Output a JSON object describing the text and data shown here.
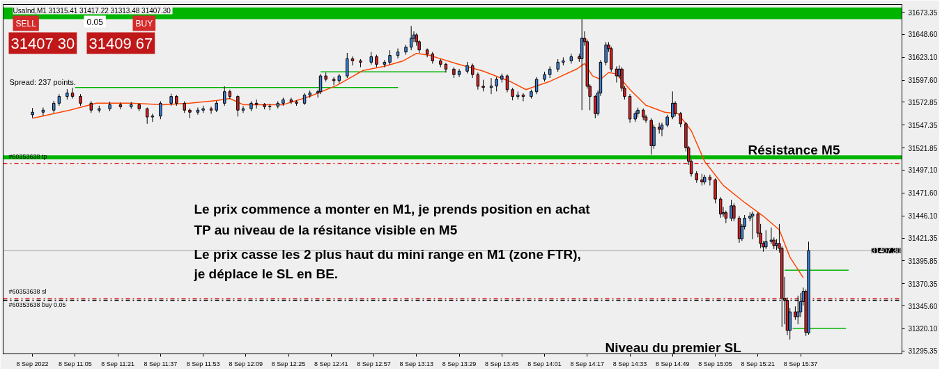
{
  "chart_data": {
    "type": "candlestick",
    "title": "UsaInd,M1  31315.41 31417.22 31313.48 31407.30",
    "xlim": [
      "2022-09-08T10:38",
      "2022-09-08T16:15"
    ],
    "ylim": [
      31292,
      31682
    ],
    "xticks": [
      {
        "value": "2022-09-08T10:49",
        "label": "8 Sep 2022"
      },
      {
        "value": "2022-09-08T11:05",
        "label": "8 Sep 11:05"
      },
      {
        "value": "2022-09-08T11:21",
        "label": "8 Sep 11:21"
      },
      {
        "value": "2022-09-08T11:37",
        "label": "8 Sep 11:37"
      },
      {
        "value": "2022-09-08T11:53",
        "label": "8 Sep 11:53"
      },
      {
        "value": "2022-09-08T12:09",
        "label": "8 Sep 12:09"
      },
      {
        "value": "2022-09-08T12:25",
        "label": "8 Sep 12:25"
      },
      {
        "value": "2022-09-08T12:41",
        "label": "8 Sep 12:41"
      },
      {
        "value": "2022-09-08T12:57",
        "label": "8 Sep 12:57"
      },
      {
        "value": "2022-09-08T13:13",
        "label": "8 Sep 13:13"
      },
      {
        "value": "2022-09-08T13:29",
        "label": "8 Sep 13:29"
      },
      {
        "value": "2022-09-08T13:45",
        "label": "8 Sep 13:45"
      },
      {
        "value": "2022-09-08T14:01",
        "label": "8 Sep 14:01"
      },
      {
        "value": "2022-09-08T14:17",
        "label": "8 Sep 14:17"
      },
      {
        "value": "2022-09-08T14:33",
        "label": "8 Sep 14:33"
      },
      {
        "value": "2022-09-08T14:49",
        "label": "8 Sep 14:49"
      },
      {
        "value": "2022-09-08T15:05",
        "label": "8 Sep 15:05"
      },
      {
        "value": "2022-09-08T15:21",
        "label": "8 Sep 15:21"
      },
      {
        "value": "2022-09-08T15:37",
        "label": "8 Sep 15:37"
      }
    ],
    "yticks": [
      {
        "value": 31673.35,
        "label": "31673.35"
      },
      {
        "value": 31648.6,
        "label": "31648.60"
      },
      {
        "value": 31623.1,
        "label": "31623.10"
      },
      {
        "value": 31597.6,
        "label": "31597.60"
      },
      {
        "value": 31572.85,
        "label": "31572.85"
      },
      {
        "value": 31547.35,
        "label": "31547.35"
      },
      {
        "value": 31521.85,
        "label": "31521.85"
      },
      {
        "value": 31497.1,
        "label": "31497.10"
      },
      {
        "value": 31471.6,
        "label": "31471.60"
      },
      {
        "value": 31446.1,
        "label": "31446.10"
      },
      {
        "value": 31421.35,
        "label": "31421.35"
      },
      {
        "value": 31395.85,
        "label": "31395.85"
      },
      {
        "value": 31370.35,
        "label": "31370.35"
      },
      {
        "value": 31345.6,
        "label": "31345.60"
      },
      {
        "value": 31320.1,
        "label": "31320.10"
      },
      {
        "value": 31295.35,
        "label": "31295.35"
      }
    ],
    "grid": false,
    "bands": [
      {
        "axis": "y",
        "from": 31665.7,
        "to": 31678.7,
        "color": "#00b400"
      },
      {
        "axis": "y",
        "from": 31509.1,
        "to": 31513.7,
        "color": "#00b400"
      }
    ],
    "ref_lines": [
      {
        "axis": "y",
        "value": 31504.6,
        "label": "#60353638 tp",
        "color": "#e01010",
        "line_style": "dashdot"
      },
      {
        "axis": "y",
        "value": 31353.6,
        "label": "#60353638 sl",
        "color": "#e01010",
        "line_style": "dashdot"
      },
      {
        "axis": "y",
        "value": 31351.8,
        "label": "#60353638 buy 0.05",
        "color": "#000000",
        "line_style": "dashdot"
      },
      {
        "axis": "y",
        "value": 31407.3,
        "label": "31407.30",
        "color": "#a0a0a0",
        "line_style": "solid"
      }
    ],
    "annotations": [
      "Le prix commence a monter en M1, je prends position en achat",
      "TP au niveau de la résitance visible en M5",
      "Le prix casse les 2 plus haut du mini range en M1 (zone FTR),",
      "je déplace le SL en BE.",
      "Spread: 237 points.",
      "SELL",
      "0.05",
      "BUY",
      "31407 30",
      "31409 67",
      "Résistance M5",
      "Niveau du premier SL"
    ],
    "series": [
      {
        "type": "line",
        "color": "#00b400",
        "x": [
          "2022-09-08T11:05",
          "2022-09-08T13:06"
        ],
        "values": [
          31589.3,
          31589.3
        ]
      },
      {
        "type": "line",
        "color": "#00b400",
        "x": [
          "2022-09-08T12:37",
          "2022-09-08T13:24"
        ],
        "values": [
          31606.9,
          31606.9
        ]
      },
      {
        "type": "line",
        "color": "#00b400",
        "x": [
          "2022-09-08T15:34",
          "2022-09-08T15:54"
        ],
        "values": [
          31320.5,
          31320.5
        ]
      },
      {
        "type": "line",
        "color": "#00b400",
        "x": [
          "2022-09-08T15:31",
          "2022-09-08T15:55"
        ],
        "values": [
          31385.5,
          31385.5
        ]
      },
      {
        "type": "line",
        "color": "#ff4500",
        "x": [
          "2022-09-08T10:49",
          "2022-09-08T11:03",
          "2022-09-08T11:13",
          "2022-09-08T11:26",
          "2022-09-08T11:38",
          "2022-09-08T11:48",
          "2022-09-08T11:58",
          "2022-09-08T12:03",
          "2022-09-08T12:08",
          "2022-09-08T12:23",
          "2022-09-08T12:33",
          "2022-09-08T12:43",
          "2022-09-08T12:53",
          "2022-09-08T13:01",
          "2022-09-08T13:08",
          "2022-09-08T13:13",
          "2022-09-08T13:18",
          "2022-09-08T13:28",
          "2022-09-08T13:38",
          "2022-09-08T13:48",
          "2022-09-08T13:54",
          "2022-09-08T14:03",
          "2022-09-08T14:13",
          "2022-09-08T14:16",
          "2022-09-08T14:19",
          "2022-09-08T14:22",
          "2022-09-08T14:25",
          "2022-09-08T14:28",
          "2022-09-08T14:33",
          "2022-09-08T14:39",
          "2022-09-08T14:46",
          "2022-09-08T14:51",
          "2022-09-08T14:56",
          "2022-09-08T15:01",
          "2022-09-08T15:08",
          "2022-09-08T15:16",
          "2022-09-08T15:23",
          "2022-09-08T15:29",
          "2022-09-08T15:33",
          "2022-09-08T15:38"
        ],
        "values": [
          31555.0,
          31564.1,
          31571.8,
          31571.8,
          31570.2,
          31571.8,
          31574.8,
          31577.1,
          31570.2,
          31570.2,
          31579.4,
          31591.6,
          31608.4,
          31613.0,
          31619.1,
          31627.5,
          31625.2,
          31616.0,
          31607.6,
          31596.2,
          31587.0,
          31596.2,
          31609.9,
          31616.0,
          31602.3,
          31598.5,
          31606.1,
          31604.6,
          31587.0,
          31569.5,
          31561.8,
          31560.3,
          31541.2,
          31506.9,
          31480.1,
          31461.0,
          31445.8,
          31430.5,
          31399.9,
          31377.0
        ]
      },
      {
        "x": [
          "2022-09-08T10:49",
          "2022-09-08T10:53",
          "2022-09-08T10:57",
          "2022-09-08T10:59",
          "2022-09-08T11:02",
          "2022-09-08T11:04",
          "2022-09-08T11:07",
          "2022-09-08T11:11",
          "2022-09-08T11:14",
          "2022-09-08T11:18",
          "2022-09-08T11:22",
          "2022-09-08T11:26",
          "2022-09-08T11:29",
          "2022-09-08T11:32",
          "2022-09-08T11:34",
          "2022-09-08T11:37",
          "2022-09-08T11:41",
          "2022-09-08T11:43",
          "2022-09-08T11:46",
          "2022-09-08T11:48",
          "2022-09-08T11:51",
          "2022-09-08T11:53",
          "2022-09-08T11:56",
          "2022-09-08T11:58",
          "2022-09-08T12:01",
          "2022-09-08T12:03",
          "2022-09-08T12:06",
          "2022-09-08T12:08",
          "2022-09-08T12:11",
          "2022-09-08T12:13",
          "2022-09-08T12:16",
          "2022-09-08T12:18",
          "2022-09-08T12:21",
          "2022-09-08T12:23",
          "2022-09-08T12:26",
          "2022-09-08T12:28",
          "2022-09-08T12:31",
          "2022-09-08T12:33",
          "2022-09-08T12:36",
          "2022-09-08T12:37",
          "2022-09-08T12:39",
          "2022-09-08T12:42",
          "2022-09-08T12:44",
          "2022-09-08T12:47",
          "2022-09-08T12:49",
          "2022-09-08T12:52",
          "2022-09-08T12:56",
          "2022-09-08T12:58",
          "2022-09-08T13:01",
          "2022-09-08T13:03",
          "2022-09-08T13:06",
          "2022-09-08T13:09",
          "2022-09-08T13:11",
          "2022-09-08T13:12",
          "2022-09-08T13:13",
          "2022-09-08T13:14",
          "2022-09-08T13:17",
          "2022-09-08T13:19",
          "2022-09-08T13:22",
          "2022-09-08T13:24",
          "2022-09-08T13:27",
          "2022-09-08T13:29",
          "2022-09-08T13:32",
          "2022-09-08T13:34",
          "2022-09-08T13:36",
          "2022-09-08T13:38",
          "2022-09-08T13:41",
          "2022-09-08T13:43",
          "2022-09-08T13:45",
          "2022-09-08T13:47",
          "2022-09-08T13:49",
          "2022-09-08T13:51",
          "2022-09-08T13:53",
          "2022-09-08T13:56",
          "2022-09-08T13:58",
          "2022-09-08T14:01",
          "2022-09-08T14:03",
          "2022-09-08T14:06",
          "2022-09-08T14:08",
          "2022-09-08T14:11",
          "2022-09-08T14:14",
          "2022-09-08T14:15",
          "2022-09-08T14:16",
          "2022-09-08T14:17",
          "2022-09-08T14:18",
          "2022-09-08T14:20",
          "2022-09-08T14:21",
          "2022-09-08T14:22",
          "2022-09-08T14:24",
          "2022-09-08T14:25",
          "2022-09-08T14:26",
          "2022-09-08T14:28",
          "2022-09-08T14:29",
          "2022-09-08T14:30",
          "2022-09-08T14:31",
          "2022-09-08T14:33",
          "2022-09-08T14:35",
          "2022-09-08T14:36",
          "2022-09-08T14:38",
          "2022-09-08T14:39",
          "2022-09-08T14:41",
          "2022-09-08T14:42",
          "2022-09-08T14:44",
          "2022-09-08T14:45",
          "2022-09-08T14:47",
          "2022-09-08T14:49",
          "2022-09-08T14:50",
          "2022-09-08T14:52",
          "2022-09-08T14:54",
          "2022-09-08T14:55",
          "2022-09-08T14:56",
          "2022-09-08T14:58",
          "2022-09-08T15:00",
          "2022-09-08T15:01",
          "2022-09-08T15:03",
          "2022-09-08T15:05",
          "2022-09-08T15:07",
          "2022-09-08T15:08",
          "2022-09-08T15:09",
          "2022-09-08T15:11",
          "2022-09-08T15:12",
          "2022-09-08T15:14",
          "2022-09-08T15:15",
          "2022-09-08T15:16",
          "2022-09-08T15:18",
          "2022-09-08T15:19",
          "2022-09-08T15:21",
          "2022-09-08T15:22",
          "2022-09-08T15:23",
          "2022-09-08T15:24",
          "2022-09-08T15:26",
          "2022-09-08T15:27",
          "2022-09-08T15:28",
          "2022-09-08T15:29",
          "2022-09-08T15:30",
          "2022-09-08T15:31",
          "2022-09-08T15:32",
          "2022-09-08T15:33",
          "2022-09-08T15:35",
          "2022-09-08T15:36",
          "2022-09-08T15:37",
          "2022-09-08T15:38",
          "2022-09-08T15:39",
          "2022-09-08T15:40"
        ],
        "ohlc": [
          [
            31559.0,
            31566.5,
            31555.5,
            31561.8
          ],
          [
            31561.8,
            31567.0,
            31558.0,
            31564.1
          ],
          [
            31564.1,
            31574.5,
            31561.0,
            31571.8
          ],
          [
            31571.8,
            31582.0,
            31569.0,
            31579.4
          ],
          [
            31579.4,
            31587.5,
            31576.0,
            31583.2
          ],
          [
            31583.2,
            31589.0,
            31577.0,
            31579.4
          ],
          [
            31579.4,
            31582.0,
            31569.0,
            31571.8
          ],
          [
            31571.8,
            31574.0,
            31561.0,
            31564.1
          ],
          [
            31564.1,
            31569.0,
            31561.5,
            31565.7
          ],
          [
            31565.7,
            31573.5,
            31563.0,
            31570.2
          ],
          [
            31570.2,
            31572.5,
            31565.0,
            31567.9
          ],
          [
            31567.9,
            31573.0,
            31565.5,
            31570.2
          ],
          [
            31570.2,
            31572.0,
            31563.0,
            31565.7
          ],
          [
            31565.7,
            31567.0,
            31548.9,
            31556.5
          ],
          [
            31556.5,
            31560.0,
            31551.0,
            31557.5
          ],
          [
            31557.5,
            31574.0,
            31554.0,
            31571.8
          ],
          [
            31571.8,
            31582.5,
            31569.0,
            31579.4
          ],
          [
            31579.4,
            31581.0,
            31569.0,
            31571.8
          ],
          [
            31571.8,
            31574.0,
            31561.0,
            31564.1
          ],
          [
            31564.1,
            31566.0,
            31555.0,
            31561.8
          ],
          [
            31561.8,
            31567.0,
            31559.0,
            31564.1
          ],
          [
            31564.1,
            31569.0,
            31561.0,
            31565.7
          ],
          [
            31565.7,
            31568.0,
            31560.0,
            31564.1
          ],
          [
            31564.1,
            31574.5,
            31562.0,
            31571.8
          ],
          [
            31571.8,
            31590.8,
            31569.0,
            31584.7
          ],
          [
            31584.7,
            31587.0,
            31576.5,
            31579.4
          ],
          [
            31579.4,
            31581.0,
            31557.0,
            31564.1
          ],
          [
            31564.1,
            31568.5,
            31561.0,
            31565.7
          ],
          [
            31565.7,
            31574.0,
            31563.0,
            31571.8
          ],
          [
            31571.8,
            31576.0,
            31566.0,
            31570.5
          ],
          [
            31570.5,
            31572.0,
            31565.0,
            31567.9
          ],
          [
            31567.9,
            31571.0,
            31564.0,
            31568.5
          ],
          [
            31568.5,
            31574.0,
            31566.0,
            31571.8
          ],
          [
            31571.8,
            31578.0,
            31569.0,
            31575.6
          ],
          [
            31575.6,
            31578.0,
            31571.0,
            31573.3
          ],
          [
            31573.3,
            31575.0,
            31569.0,
            31571.8
          ],
          [
            31571.8,
            31583.0,
            31570.0,
            31580.9
          ],
          [
            31580.9,
            31586.0,
            31578.0,
            31583.2
          ],
          [
            31583.2,
            31587.0,
            31578.0,
            31584.7
          ],
          [
            31584.7,
            31604.5,
            31582.0,
            31602.3
          ],
          [
            31602.3,
            31606.0,
            31596.0,
            31598.5
          ],
          [
            31598.5,
            31601.0,
            31592.0,
            31597.0
          ],
          [
            31597.0,
            31604.5,
            31594.0,
            31602.3
          ],
          [
            31602.3,
            31628.0,
            31600.0,
            31621.4
          ],
          [
            31621.4,
            31624.0,
            31614.0,
            31619.1
          ],
          [
            31619.1,
            31621.0,
            31612.0,
            31617.6
          ],
          [
            31617.6,
            31629.0,
            31615.0,
            31623.7
          ],
          [
            31623.7,
            31626.0,
            31612.0,
            31615.3
          ],
          [
            31615.3,
            31620.0,
            31612.0,
            31617.6
          ],
          [
            31617.6,
            31631.0,
            31615.0,
            31625.2
          ],
          [
            31625.2,
            31633.0,
            31622.0,
            31629.0
          ],
          [
            31629.0,
            31637.0,
            31626.0,
            31634.4
          ],
          [
            31634.4,
            31658.0,
            31631.0,
            31644.3
          ],
          [
            31644.3,
            31652.0,
            31640.0,
            31648.1
          ],
          [
            31648.1,
            31650.0,
            31636.0,
            31640.5
          ],
          [
            31640.5,
            31642.0,
            31628.0,
            31631.3
          ],
          [
            31631.3,
            31633.0,
            31623.0,
            31626.7
          ],
          [
            31626.7,
            31629.0,
            31616.0,
            31619.1
          ],
          [
            31619.1,
            31621.0,
            31612.0,
            31615.3
          ],
          [
            31615.3,
            31617.0,
            31606.0,
            31609.9
          ],
          [
            31609.9,
            31612.0,
            31600.0,
            31603.8
          ],
          [
            31603.8,
            31610.0,
            31601.0,
            31607.6
          ],
          [
            31607.6,
            31618.0,
            31605.0,
            31613.8
          ],
          [
            31613.8,
            31616.0,
            31600.0,
            31603.8
          ],
          [
            31603.8,
            31606.0,
            31587.0,
            31590.8
          ],
          [
            31590.8,
            31598.0,
            31585.0,
            31589.3
          ],
          [
            31589.3,
            31600.0,
            31582.0,
            31591.0
          ],
          [
            31591.0,
            31601.0,
            31585.0,
            31598.5
          ],
          [
            31598.5,
            31605.0,
            31595.0,
            31602.3
          ],
          [
            31602.3,
            31604.0,
            31584.0,
            31587.0
          ],
          [
            31587.0,
            31589.0,
            31575.0,
            31579.4
          ],
          [
            31579.4,
            31585.0,
            31576.0,
            31580.9
          ],
          [
            31580.9,
            31583.0,
            31574.0,
            31579.4
          ],
          [
            31579.4,
            31587.0,
            31577.0,
            31584.7
          ],
          [
            31584.7,
            31601.0,
            31582.0,
            31598.5
          ],
          [
            31598.5,
            31607.0,
            31596.0,
            31603.8
          ],
          [
            31603.8,
            31613.0,
            31600.0,
            31609.9
          ],
          [
            31609.9,
            31621.0,
            31607.0,
            31617.6
          ],
          [
            31617.6,
            31623.0,
            31614.0,
            31619.1
          ],
          [
            31619.1,
            31627.0,
            31616.0,
            31623.7
          ],
          [
            31623.7,
            31627.0,
            31618.0,
            31621.5
          ],
          [
            31621.5,
            31665.7,
            31564.1,
            31644.3
          ],
          [
            31644.3,
            31652.0,
            31636.0,
            31640.5
          ],
          [
            31640.5,
            31643.0,
            31588.0,
            31590.8
          ],
          [
            31590.8,
            31593.0,
            31564.0,
            31579.4
          ],
          [
            31579.4,
            31581.0,
            31555.0,
            31560.3
          ],
          [
            31560.3,
            31586.0,
            31558.0,
            31583.2
          ],
          [
            31583.2,
            31620.0,
            31580.0,
            31617.6
          ],
          [
            31617.6,
            31640.0,
            31614.0,
            31636.7
          ],
          [
            31636.7,
            31640.0,
            31629.0,
            31632.8
          ],
          [
            31632.8,
            31635.0,
            31607.0,
            31610.0
          ],
          [
            31610.0,
            31613.0,
            31595.0,
            31602.3
          ],
          [
            31602.3,
            31614.0,
            31600.0,
            31609.9
          ],
          [
            31609.9,
            31612.0,
            31585.0,
            31588.6
          ],
          [
            31588.6,
            31591.0,
            31576.0,
            31579.4
          ],
          [
            31579.4,
            31582.0,
            31550.0,
            31554.2
          ],
          [
            31554.2,
            31563.0,
            31551.0,
            31560.3
          ],
          [
            31560.3,
            31567.0,
            31556.0,
            31564.1
          ],
          [
            31564.1,
            31566.0,
            31553.0,
            31556.5
          ],
          [
            31556.5,
            31559.0,
            31550.0,
            31552.7
          ],
          [
            31552.7,
            31555.0,
            31514.5,
            31524.4
          ],
          [
            31524.4,
            31548.0,
            31521.0,
            31545.0
          ],
          [
            31545.0,
            31550.0,
            31538.0,
            31542.7
          ],
          [
            31542.7,
            31550.0,
            31535.0,
            31547.3
          ],
          [
            31547.3,
            31559.0,
            31545.0,
            31556.5
          ],
          [
            31556.5,
            31585.0,
            31554.0,
            31571.8
          ],
          [
            31571.8,
            31574.0,
            31557.0,
            31560.3
          ],
          [
            31560.3,
            31562.0,
            31545.0,
            31548.9
          ],
          [
            31548.9,
            31551.0,
            31518.0,
            31522.1
          ],
          [
            31522.1,
            31524.0,
            31503.0,
            31506.9
          ],
          [
            31506.9,
            31509.0,
            31490.0,
            31493.1
          ],
          [
            31493.1,
            31496.0,
            31483.0,
            31486.2
          ],
          [
            31486.2,
            31493.0,
            31480.0,
            31483.9
          ],
          [
            31483.9,
            31492.0,
            31481.0,
            31489.3
          ],
          [
            31489.3,
            31492.0,
            31480.0,
            31486.2
          ],
          [
            31486.2,
            31488.0,
            31460.0,
            31464.8
          ],
          [
            31464.8,
            31467.0,
            31444.0,
            31448.1
          ],
          [
            31448.1,
            31456.0,
            31445.0,
            31449.6
          ],
          [
            31449.6,
            31452.0,
            31438.0,
            31443.5
          ],
          [
            31443.5,
            31464.0,
            31440.0,
            31457.2
          ],
          [
            31457.2,
            31460.0,
            31440.0,
            31443.5
          ],
          [
            31443.5,
            31446.0,
            31416.0,
            31420.6
          ],
          [
            31420.6,
            31437.0,
            31418.0,
            31434.3
          ],
          [
            31434.3,
            31447.0,
            31431.0,
            31443.5
          ],
          [
            31443.5,
            31450.0,
            31440.0,
            31445.8
          ],
          [
            31445.8,
            31451.0,
            31420.0,
            31448.1
          ],
          [
            31448.1,
            31450.0,
            31422.0,
            31426.7
          ],
          [
            31426.7,
            31437.0,
            31410.0,
            31415.2
          ],
          [
            31415.2,
            31418.0,
            31406.0,
            31411.4
          ],
          [
            31411.4,
            31430.0,
            31409.0,
            31417.5
          ],
          [
            31417.5,
            31433.0,
            31415.0,
            31419.0
          ],
          [
            31419.0,
            31422.0,
            31409.0,
            31412.9
          ],
          [
            31412.9,
            31420.0,
            31408.0,
            31415.2
          ],
          [
            31415.2,
            31437.0,
            31405.0,
            31409.9
          ],
          [
            31409.9,
            31412.0,
            31322.0,
            31354.1
          ],
          [
            31354.1,
            31378.0,
            31325.0,
            31351.8
          ],
          [
            31351.8,
            31355.0,
            31313.0,
            31318.2
          ],
          [
            31318.2,
            31343.0,
            31308.0,
            31338.9
          ],
          [
            31338.9,
            31345.0,
            31330.0,
            31333.5
          ],
          [
            31333.5,
            31357.0,
            31325.0,
            31338.9
          ],
          [
            31338.9,
            31360.0,
            31333.0,
            31350.3
          ],
          [
            31350.3,
            31366.0,
            31346.0,
            31361.8
          ],
          [
            31361.8,
            31364.0,
            31312.0,
            31316.0
          ],
          [
            31315.41,
            31417.22,
            31313.48,
            31407.3
          ]
        ]
      }
    ]
  }
}
